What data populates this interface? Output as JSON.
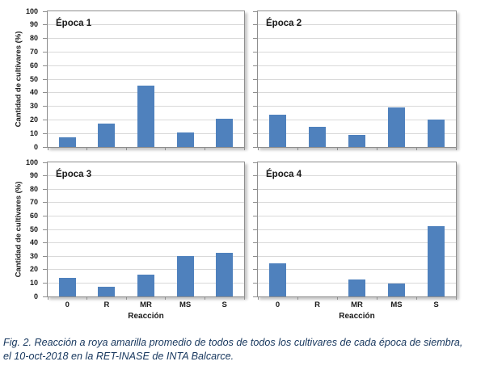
{
  "figure": {
    "caption": {
      "line1": "Fig. 2. Reacción a roya amarilla promedio de todos de todos los cultivares de cada época de siembra,",
      "line2": "el 10-oct-2018 en la RET-INASE de INTA Balcarce."
    }
  },
  "colors": {
    "bar_fill": "#4f81bd",
    "gridline": "#d9d9d9",
    "axis_line": "#8e8e8e",
    "caption_text": "#17375e"
  },
  "chart_data": [
    {
      "type": "bar",
      "title": "Época 1",
      "categories": [
        "0",
        "R",
        "MR",
        "MS",
        "S"
      ],
      "values": [
        7,
        17,
        45,
        10.5,
        21
      ],
      "xlabel": "Reacción",
      "ylabel": "Cantidad de cultivares (%)",
      "ylim": [
        0,
        100
      ],
      "ytick_step": 10,
      "grid": true,
      "legend": false
    },
    {
      "type": "bar",
      "title": "Época 2",
      "categories": [
        "0",
        "R",
        "MR",
        "MS",
        "S"
      ],
      "values": [
        24,
        15,
        9,
        29,
        20
      ],
      "xlabel": "Reacción",
      "ylabel": "Cantidad de cultivares (%)",
      "ylim": [
        0,
        100
      ],
      "ytick_step": 10,
      "grid": true,
      "legend": false
    },
    {
      "type": "bar",
      "title": "Época 3",
      "categories": [
        "0",
        "R",
        "MR",
        "MS",
        "S"
      ],
      "values": [
        14,
        7,
        16,
        30,
        32.5
      ],
      "xlabel": "Reacción",
      "ylabel": "Cantidad de cultivares (%)",
      "ylim": [
        0,
        100
      ],
      "ytick_step": 10,
      "grid": true,
      "legend": false
    },
    {
      "type": "bar",
      "title": "Época 4",
      "categories": [
        "0",
        "R",
        "MR",
        "MS",
        "S"
      ],
      "values": [
        25,
        0,
        12.5,
        9.5,
        52.5
      ],
      "xlabel": "Reacción",
      "ylabel": "Cantidad de cultivares (%)",
      "ylim": [
        0,
        100
      ],
      "ytick_step": 10,
      "grid": true,
      "legend": false
    }
  ]
}
